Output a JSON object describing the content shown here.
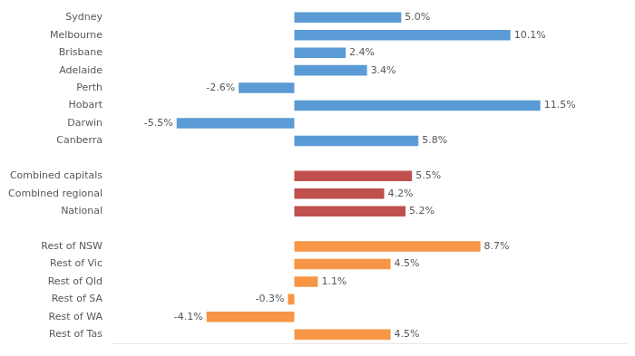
{
  "chart_data": {
    "type": "bar",
    "orientation": "horizontal",
    "categories": [
      "Sydney",
      "Melbourne",
      "Brisbane",
      "Adelaide",
      "Perth",
      "Hobart",
      "Darwin",
      "Canberra",
      null,
      "Combined capitals",
      "Combined regional",
      "National",
      null,
      "Rest of NSW",
      "Rest of Vic",
      "Rest of Qld",
      "Rest of SA",
      "Rest of WA",
      "Rest of Tas"
    ],
    "values": [
      5.0,
      10.1,
      2.4,
      3.4,
      -2.6,
      11.5,
      -5.5,
      5.8,
      null,
      5.5,
      4.2,
      5.2,
      null,
      8.7,
      4.5,
      1.1,
      -0.3,
      -4.1,
      4.5
    ],
    "value_labels": [
      "5.0%",
      "10.1%",
      "2.4%",
      "3.4%",
      "-2.6%",
      "11.5%",
      "-5.5%",
      "5.8%",
      null,
      "5.5%",
      "4.2%",
      "5.2%",
      null,
      "8.7%",
      "4.5%",
      "1.1%",
      "-0.3%",
      "-4.1%",
      "4.5%"
    ],
    "colors": [
      "#5B9BD5",
      "#5B9BD5",
      "#5B9BD5",
      "#5B9BD5",
      "#5B9BD5",
      "#5B9BD5",
      "#5B9BD5",
      "#5B9BD5",
      null,
      "#C0504D",
      "#C0504D",
      "#C0504D",
      null,
      "#F79646",
      "#F79646",
      "#F79646",
      "#F79646",
      "#F79646",
      "#F79646"
    ],
    "xlim": [
      -8.5,
      15.5
    ],
    "grid": false,
    "data_labels": true,
    "tick_labels": "y"
  }
}
